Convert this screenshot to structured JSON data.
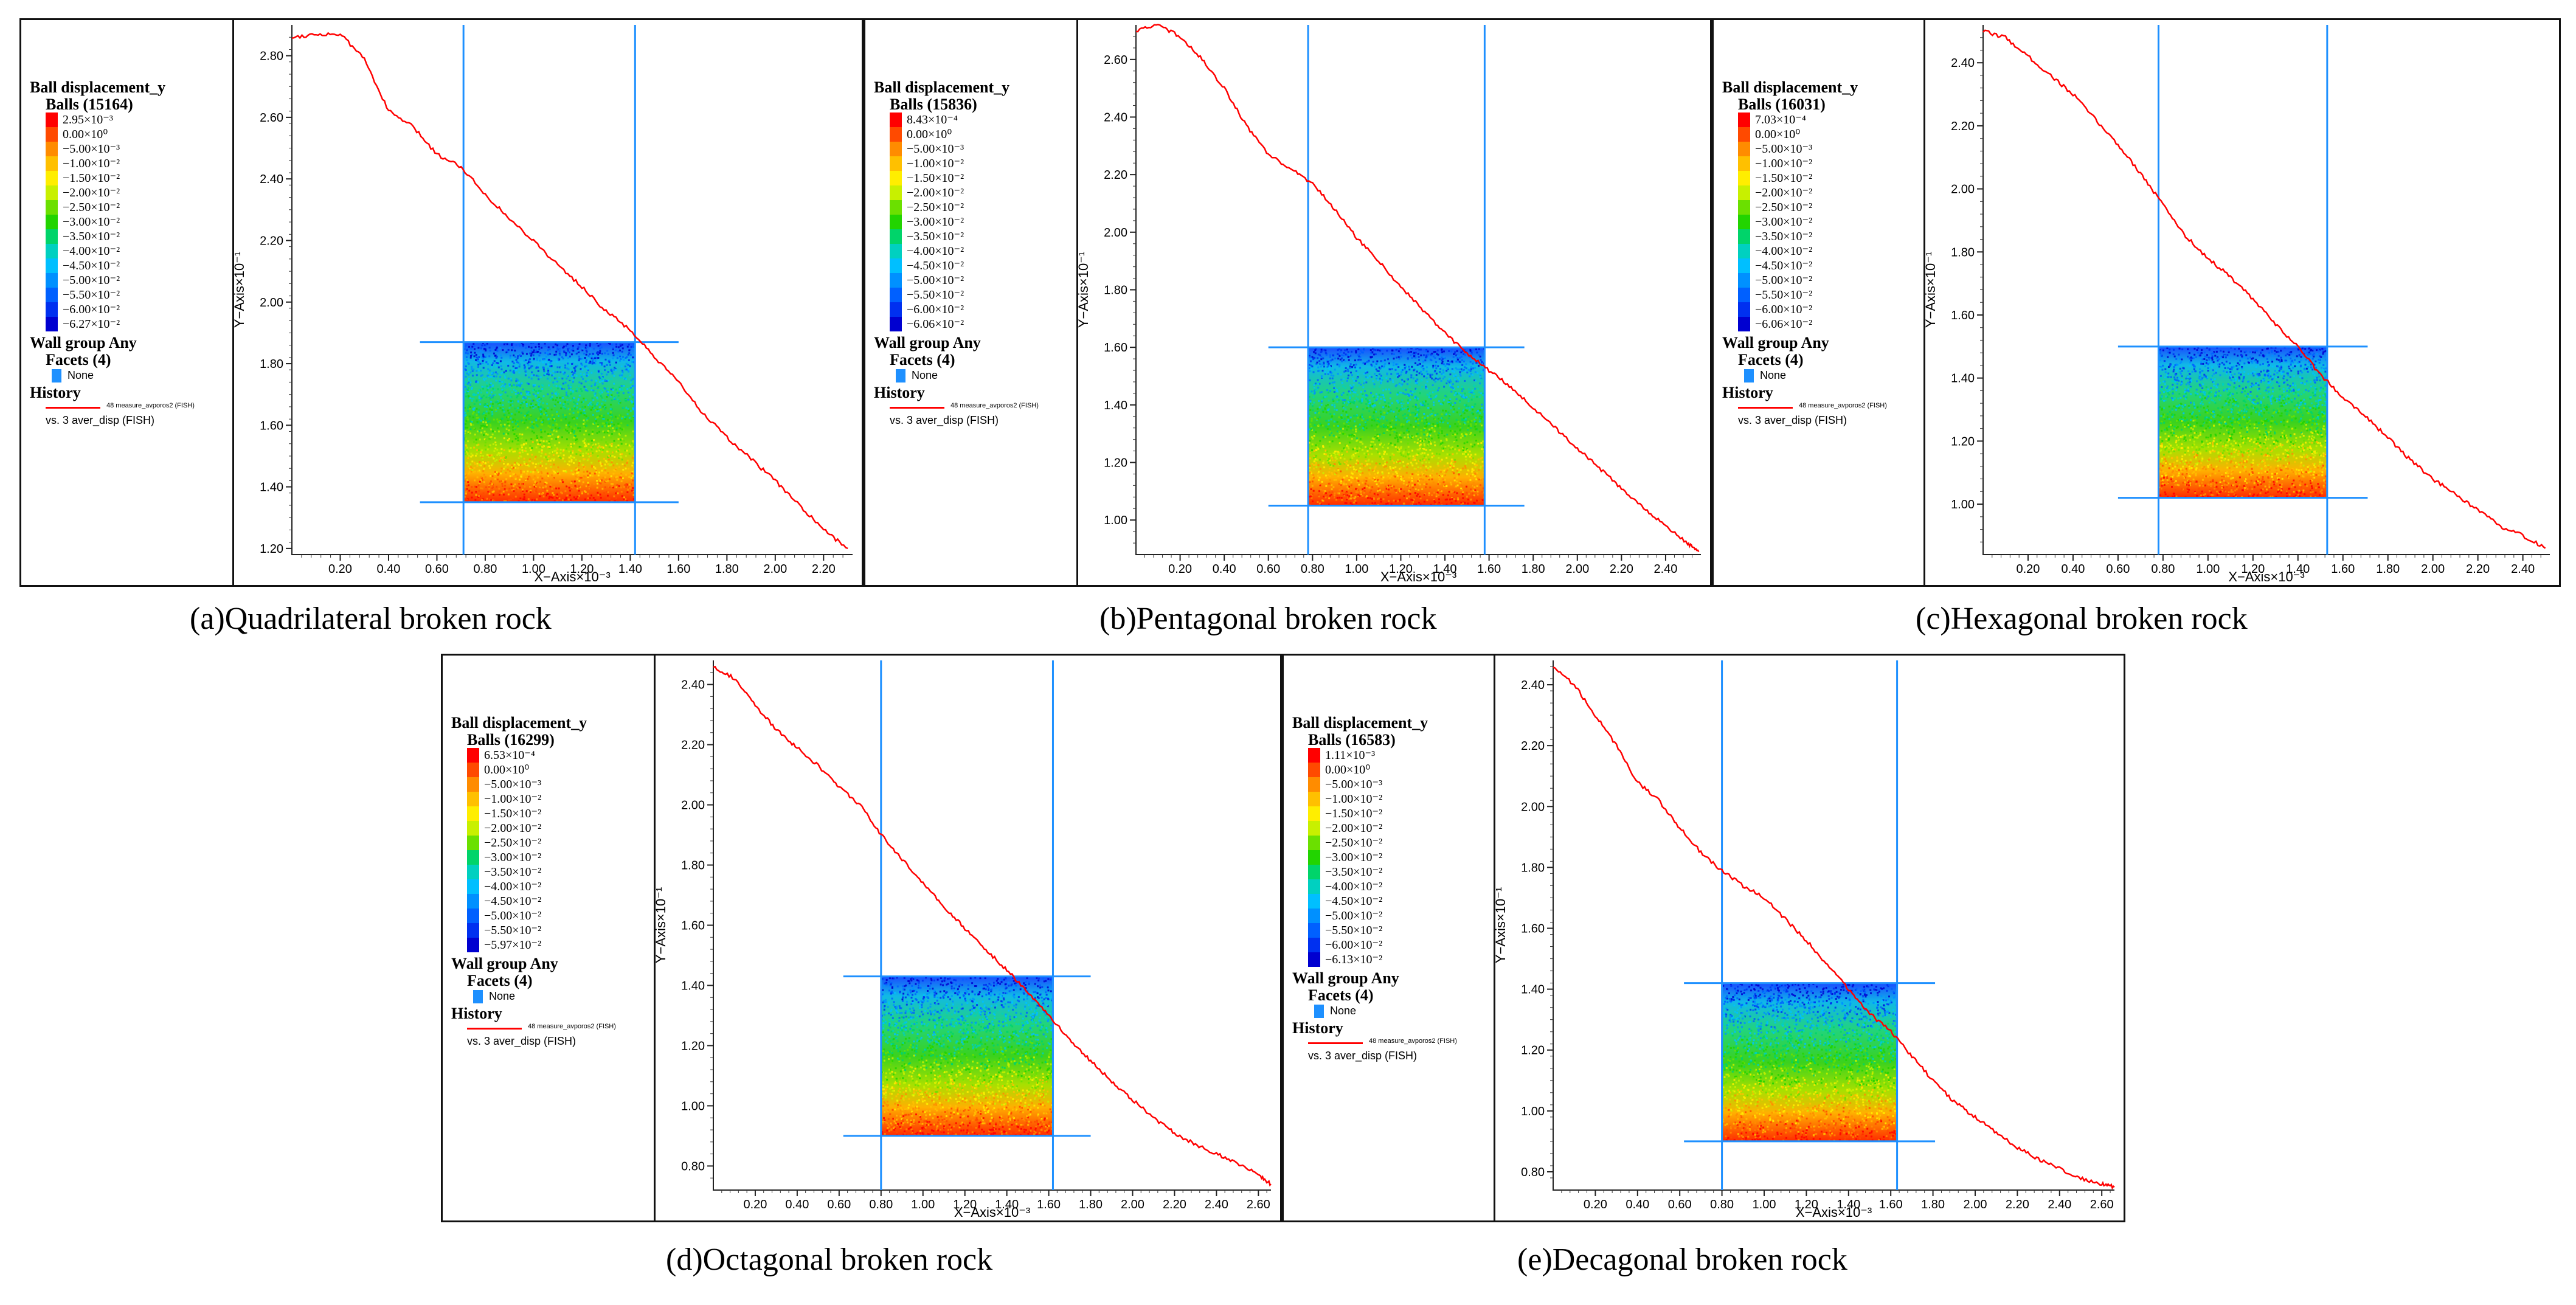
{
  "colors": {
    "curve": "#ff0000",
    "wall_line": "#1e90ff",
    "frame": "#111111",
    "scale": [
      "#ff0000",
      "#ff4a00",
      "#ff8c00",
      "#ffc000",
      "#ffee00",
      "#c8f000",
      "#6be000",
      "#22d400",
      "#00d46a",
      "#00d0c0",
      "#00bfff",
      "#0090ff",
      "#0060ff",
      "#0030f0",
      "#0000d0"
    ]
  },
  "legend_common": {
    "heading": "Ball displacement_y",
    "wall_group": "Wall group Any",
    "facets": "Facets (4)",
    "wall_none": "None",
    "history": "History",
    "history_item": "48 measure_avporos2 (FISH)",
    "history_vs": "vs. 3 aver_disp (FISH)",
    "scale_entries": [
      "0.00×10⁰",
      "−5.00×10⁻³",
      "−1.00×10⁻²",
      "−1.50×10⁻²",
      "−2.00×10⁻²",
      "−2.50×10⁻²",
      "−3.00×10⁻²",
      "−3.50×10⁻²",
      "−4.00×10⁻²",
      "−4.50×10⁻²",
      "−5.00×10⁻²",
      "−5.50×10⁻²",
      "−6.00×10⁻²"
    ]
  },
  "axis_labels": {
    "x": "X−Axis×10⁻³",
    "y": "Y−Axis×10⁻¹"
  },
  "panels": [
    {
      "caption": "(a)Quadrilateral broken rock",
      "balls": "Balls (15164)",
      "scale_max": "2.95×10⁻³",
      "scale_min": "−6.27×10⁻²",
      "scale_entries": [
        "0.00×10⁰",
        "−5.00×10⁻³",
        "−1.00×10⁻²",
        "−1.50×10⁻²",
        "−2.00×10⁻²",
        "−2.50×10⁻²",
        "−3.00×10⁻²",
        "−3.50×10⁻²",
        "−4.00×10⁻²",
        "−4.50×10⁻²",
        "−5.00×10⁻²",
        "−5.50×10⁻²",
        "−6.00×10⁻²"
      ],
      "chart_data": {
        "type": "line",
        "title": "(a)Quadrilateral broken rock",
        "xlabel": "X−Axis×10⁻³",
        "ylabel": "Y−Axis×10⁻¹",
        "xlim": [
          0,
          2.32
        ],
        "ylim": [
          1.18,
          2.9
        ],
        "x_ticks": [
          "0.20",
          "0.40",
          "0.60",
          "0.80",
          "1.00",
          "1.20",
          "1.40",
          "1.60",
          "1.80",
          "2.00",
          "2.20"
        ],
        "y_ticks": [
          "1.20",
          "1.40",
          "1.60",
          "1.80",
          "2.00",
          "2.20",
          "2.40",
          "2.60",
          "2.80"
        ],
        "series": [
          {
            "name": "48 measure_avporos2 (FISH)",
            "x": [
              0.0,
              0.1,
              0.2,
              0.3,
              0.4,
              0.5,
              0.6,
              0.7,
              0.8,
              0.9,
              1.0,
              1.1,
              1.2,
              1.3,
              1.4,
              1.5,
              1.6,
              1.7,
              1.8,
              1.9,
              2.0,
              2.1,
              2.2,
              2.3
            ],
            "y": [
              2.86,
              2.87,
              2.87,
              2.79,
              2.62,
              2.57,
              2.48,
              2.44,
              2.35,
              2.27,
              2.2,
              2.12,
              2.05,
              1.97,
              1.91,
              1.82,
              1.74,
              1.64,
              1.56,
              1.49,
              1.42,
              1.34,
              1.26,
              1.2
            ]
          }
        ],
        "walls": {
          "x": [
            0.71,
            1.42
          ],
          "y": [
            1.35,
            1.87
          ]
        },
        "vertical_guides": [
          0.71,
          1.42
        ],
        "horizontal_guides": [
          1.35,
          1.87
        ]
      }
    },
    {
      "caption": "(b)Pentagonal broken rock",
      "balls": "Balls (15836)",
      "scale_max": "8.43×10⁻⁴",
      "scale_min": "−6.06×10⁻²",
      "scale_entries": [
        "0.00×10⁰",
        "−5.00×10⁻³",
        "−1.00×10⁻²",
        "−1.50×10⁻²",
        "−2.00×10⁻²",
        "−2.50×10⁻²",
        "−3.00×10⁻²",
        "−3.50×10⁻²",
        "−4.00×10⁻²",
        "−4.50×10⁻²",
        "−5.00×10⁻²",
        "−5.50×10⁻²",
        "−6.00×10⁻²"
      ],
      "chart_data": {
        "type": "line",
        "title": "(b)Pentagonal broken rock",
        "xlabel": "X−Axis×10⁻³",
        "ylabel": "Y−Axis×10⁻¹",
        "xlim": [
          0,
          2.56
        ],
        "ylim": [
          0.88,
          2.72
        ],
        "x_ticks": [
          "0.20",
          "0.40",
          "0.60",
          "0.80",
          "1.00",
          "1.20",
          "1.40",
          "1.60",
          "1.80",
          "2.00",
          "2.20",
          "2.40"
        ],
        "y_ticks": [
          "1.00",
          "1.20",
          "1.40",
          "1.60",
          "1.80",
          "2.00",
          "2.20",
          "2.40",
          "2.60"
        ],
        "series": [
          {
            "name": "48 measure_avporos2 (FISH)",
            "x": [
              0.0,
              0.1,
              0.2,
              0.3,
              0.4,
              0.5,
              0.6,
              0.7,
              0.8,
              0.9,
              1.0,
              1.1,
              1.2,
              1.3,
              1.4,
              1.5,
              1.6,
              1.7,
              1.8,
              1.9,
              2.0,
              2.1,
              2.2,
              2.3,
              2.4,
              2.5,
              2.55
            ],
            "y": [
              2.7,
              2.72,
              2.68,
              2.6,
              2.5,
              2.37,
              2.27,
              2.22,
              2.17,
              2.08,
              1.98,
              1.9,
              1.81,
              1.73,
              1.65,
              1.58,
              1.52,
              1.46,
              1.39,
              1.32,
              1.25,
              1.18,
              1.11,
              1.04,
              0.98,
              0.92,
              0.89
            ]
          }
        ],
        "walls": {
          "x": [
            0.78,
            1.58
          ],
          "y": [
            1.05,
            1.6
          ]
        },
        "vertical_guides": [
          0.78,
          1.58
        ],
        "horizontal_guides": [
          1.05,
          1.6
        ]
      }
    },
    {
      "caption": "(c)Hexagonal broken rock",
      "balls": "Balls (16031)",
      "scale_max": "7.03×10⁻⁴",
      "scale_min": "−6.06×10⁻²",
      "scale_entries": [
        "0.00×10⁰",
        "−5.00×10⁻³",
        "−1.00×10⁻²",
        "−1.50×10⁻²",
        "−2.00×10⁻²",
        "−2.50×10⁻²",
        "−3.00×10⁻²",
        "−3.50×10⁻²",
        "−4.00×10⁻²",
        "−4.50×10⁻²",
        "−5.00×10⁻²",
        "−5.50×10⁻²",
        "−6.00×10⁻²"
      ],
      "chart_data": {
        "type": "line",
        "title": "(c)Hexagonal broken rock",
        "xlabel": "X−Axis×10⁻³",
        "ylabel": "Y−Axis×10⁻¹",
        "xlim": [
          0,
          2.52
        ],
        "ylim": [
          0.84,
          2.52
        ],
        "x_ticks": [
          "0.20",
          "0.40",
          "0.60",
          "0.80",
          "1.00",
          "1.20",
          "1.40",
          "1.60",
          "1.80",
          "2.00",
          "2.20",
          "2.40"
        ],
        "y_ticks": [
          "1.00",
          "1.20",
          "1.40",
          "1.60",
          "1.80",
          "2.00",
          "2.20",
          "2.40"
        ],
        "series": [
          {
            "name": "48 measure_avporos2 (FISH)",
            "x": [
              0.0,
              0.1,
              0.2,
              0.3,
              0.4,
              0.5,
              0.6,
              0.7,
              0.8,
              0.9,
              1.0,
              1.1,
              1.2,
              1.3,
              1.4,
              1.5,
              1.6,
              1.7,
              1.8,
              1.9,
              2.0,
              2.1,
              2.2,
              2.3,
              2.4,
              2.5
            ],
            "y": [
              2.5,
              2.48,
              2.42,
              2.36,
              2.3,
              2.22,
              2.14,
              2.05,
              1.95,
              1.85,
              1.78,
              1.72,
              1.65,
              1.57,
              1.5,
              1.41,
              1.34,
              1.28,
              1.21,
              1.14,
              1.08,
              1.03,
              0.98,
              0.93,
              0.9,
              0.86
            ]
          }
        ],
        "walls": {
          "x": [
            0.78,
            1.53
          ],
          "y": [
            1.02,
            1.5
          ]
        },
        "vertical_guides": [
          0.78,
          1.53
        ],
        "horizontal_guides": [
          1.02,
          1.5
        ]
      }
    },
    {
      "caption": "(d)Octagonal broken rock",
      "balls": "Balls (16299)",
      "scale_max": "6.53×10⁻⁴",
      "scale_min": "−5.97×10⁻²",
      "scale_entries": [
        "0.00×10⁰",
        "−5.00×10⁻³",
        "−1.00×10⁻²",
        "−1.50×10⁻²",
        "−2.00×10⁻²",
        "−2.50×10⁻²",
        "−3.00×10⁻²",
        "−3.50×10⁻²",
        "−4.00×10⁻²",
        "−4.50×10⁻²",
        "−5.00×10⁻²",
        "−5.50×10⁻²"
      ],
      "chart_data": {
        "type": "line",
        "title": "(d)Octagonal broken rock",
        "xlabel": "X−Axis×10⁻³",
        "ylabel": "Y−Axis×10⁻¹",
        "xlim": [
          0,
          2.66
        ],
        "ylim": [
          0.72,
          2.48
        ],
        "x_ticks": [
          "0.20",
          "0.40",
          "0.60",
          "0.80",
          "1.00",
          "1.20",
          "1.40",
          "1.60",
          "1.80",
          "2.00",
          "2.20",
          "2.40",
          "2.60"
        ],
        "y_ticks": [
          "0.80",
          "1.00",
          "1.20",
          "1.40",
          "1.60",
          "1.80",
          "2.00",
          "2.20",
          "2.40"
        ],
        "series": [
          {
            "name": "48 measure_avporos2 (FISH)",
            "x": [
              0.0,
              0.1,
              0.2,
              0.3,
              0.4,
              0.5,
              0.6,
              0.7,
              0.8,
              0.9,
              1.0,
              1.1,
              1.2,
              1.3,
              1.4,
              1.5,
              1.6,
              1.7,
              1.8,
              1.9,
              2.0,
              2.1,
              2.2,
              2.3,
              2.4,
              2.5,
              2.6,
              2.66
            ],
            "y": [
              2.46,
              2.42,
              2.33,
              2.25,
              2.19,
              2.13,
              2.06,
              2.0,
              1.9,
              1.82,
              1.74,
              1.66,
              1.59,
              1.52,
              1.45,
              1.38,
              1.3,
              1.22,
              1.15,
              1.08,
              1.02,
              0.96,
              0.91,
              0.87,
              0.84,
              0.81,
              0.77,
              0.74
            ]
          }
        ],
        "walls": {
          "x": [
            0.8,
            1.62
          ],
          "y": [
            0.9,
            1.43
          ]
        },
        "vertical_guides": [
          0.8,
          1.62
        ],
        "horizontal_guides": [
          0.9,
          1.43
        ]
      }
    },
    {
      "caption": "(e)Decagonal broken rock",
      "balls": "Balls (16583)",
      "scale_max": "1.11×10⁻³",
      "scale_min": "−6.13×10⁻²",
      "scale_entries": [
        "0.00×10⁰",
        "−5.00×10⁻³",
        "−1.00×10⁻²",
        "−1.50×10⁻²",
        "−2.00×10⁻²",
        "−2.50×10⁻²",
        "−3.00×10⁻²",
        "−3.50×10⁻²",
        "−4.00×10⁻²",
        "−4.50×10⁻²",
        "−5.00×10⁻²",
        "−5.50×10⁻²",
        "−6.00×10⁻²"
      ],
      "chart_data": {
        "type": "line",
        "title": "(e)Decagonal broken rock",
        "xlabel": "X−Axis×10⁻³",
        "ylabel": "Y−Axis×10⁻¹",
        "xlim": [
          0,
          2.66
        ],
        "ylim": [
          0.74,
          2.48
        ],
        "x_ticks": [
          "0.20",
          "0.40",
          "0.60",
          "0.80",
          "1.00",
          "1.20",
          "1.40",
          "1.60",
          "1.80",
          "2.00",
          "2.20",
          "2.40",
          "2.60"
        ],
        "y_ticks": [
          "0.80",
          "1.00",
          "1.20",
          "1.40",
          "1.60",
          "1.80",
          "2.00",
          "2.20",
          "2.40"
        ],
        "series": [
          {
            "name": "48 measure_avporos2 (FISH)",
            "x": [
              0.0,
              0.1,
              0.2,
              0.3,
              0.4,
              0.5,
              0.6,
              0.7,
              0.8,
              0.9,
              1.0,
              1.1,
              1.2,
              1.3,
              1.4,
              1.5,
              1.6,
              1.7,
              1.8,
              1.9,
              2.0,
              2.1,
              2.2,
              2.3,
              2.4,
              2.5,
              2.6,
              2.66
            ],
            "y": [
              2.46,
              2.4,
              2.3,
              2.2,
              2.08,
              2.02,
              1.93,
              1.85,
              1.79,
              1.74,
              1.7,
              1.63,
              1.56,
              1.48,
              1.4,
              1.32,
              1.26,
              1.18,
              1.1,
              1.03,
              0.98,
              0.93,
              0.88,
              0.84,
              0.81,
              0.78,
              0.76,
              0.75
            ]
          }
        ],
        "walls": {
          "x": [
            0.8,
            1.63
          ],
          "y": [
            0.9,
            1.42
          ]
        },
        "vertical_guides": [
          0.8,
          1.63
        ],
        "horizontal_guides": [
          0.9,
          1.42
        ]
      }
    }
  ]
}
